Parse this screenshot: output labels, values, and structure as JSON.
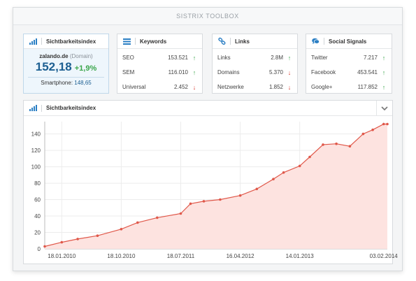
{
  "window": {
    "title": "SISTRIX TOOLBOX"
  },
  "visibility_card": {
    "title": "Sichtbarkeitsindex",
    "domain": "zalando.de",
    "domain_suffix": "(Domain)",
    "value": "152,18",
    "change": "+1,9%",
    "smartphone_label": "Smartphone:",
    "smartphone_value": "148,65"
  },
  "keywords_card": {
    "title": "Keywords",
    "rows": [
      {
        "label": "SEO",
        "value": "153.521",
        "trend": "up"
      },
      {
        "label": "SEM",
        "value": "116.010",
        "trend": "up"
      },
      {
        "label": "Universal",
        "value": "2.452",
        "trend": "down"
      }
    ]
  },
  "links_card": {
    "title": "Links",
    "rows": [
      {
        "label": "Links",
        "value": "2.8M",
        "trend": "up"
      },
      {
        "label": "Domains",
        "value": "5.370",
        "trend": "down"
      },
      {
        "label": "Netzwerke",
        "value": "1.852",
        "trend": "down"
      }
    ]
  },
  "social_card": {
    "title": "Social Signals",
    "rows": [
      {
        "label": "Twitter",
        "value": "7.217",
        "trend": "up"
      },
      {
        "label": "Facebook",
        "value": "453.541",
        "trend": "up"
      },
      {
        "label": "Google+",
        "value": "117.852",
        "trend": "up"
      }
    ]
  },
  "chart_panel": {
    "title": "Sichtbarkeitsindex"
  },
  "colors": {
    "accent": "#1c5f92",
    "up": "#3aa64b",
    "down": "#d9362b",
    "area_fill": "#fde3e0",
    "line": "#e0584a"
  },
  "chart_data": {
    "type": "area",
    "title": "",
    "xlabel": "",
    "ylabel": "",
    "ylim": [
      0,
      155
    ],
    "yticks": [
      0,
      20,
      40,
      60,
      80,
      100,
      120,
      140
    ],
    "grid": true,
    "xtick_labels": [
      "18.01.2010",
      "18.10.2010",
      "18.07.2011",
      "16.04.2012",
      "14.01.2013",
      "03.02.2014"
    ],
    "x_range": [
      "2009-11-01",
      "2014-02-20"
    ],
    "series": [
      {
        "points": [
          [
            "2009-11-01",
            3
          ],
          [
            "2010-01-18",
            8
          ],
          [
            "2010-04-01",
            12
          ],
          [
            "2010-07-01",
            16
          ],
          [
            "2010-10-18",
            24
          ],
          [
            "2011-01-01",
            32
          ],
          [
            "2011-04-01",
            38
          ],
          [
            "2011-07-18",
            43
          ],
          [
            "2011-09-01",
            55
          ],
          [
            "2011-11-01",
            58
          ],
          [
            "2012-01-15",
            60
          ],
          [
            "2012-04-16",
            65
          ],
          [
            "2012-07-01",
            73
          ],
          [
            "2012-09-15",
            85
          ],
          [
            "2012-11-01",
            93
          ],
          [
            "2013-01-14",
            101
          ],
          [
            "2013-03-01",
            112
          ],
          [
            "2013-05-01",
            127
          ],
          [
            "2013-07-01",
            128
          ],
          [
            "2013-09-01",
            125
          ],
          [
            "2013-11-01",
            140
          ],
          [
            "2013-12-15",
            145
          ],
          [
            "2014-02-03",
            152
          ],
          [
            "2014-02-20",
            152
          ]
        ]
      }
    ]
  }
}
